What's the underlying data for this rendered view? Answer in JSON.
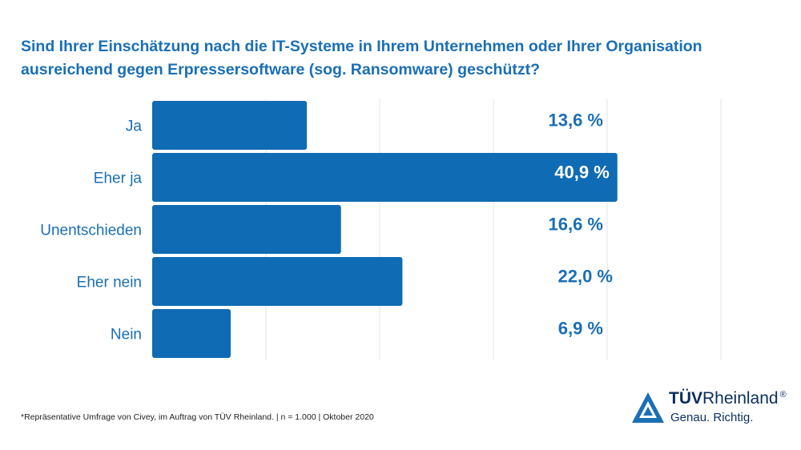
{
  "title_lines": [
    "Sind Ihrer Einschätzung nach die IT-Systeme in Ihrem Unternehmen oder Ihrer Organisation",
    "ausreichend gegen Erpressersoftware (sog. Ransomware) geschützt?"
  ],
  "chart_data": {
    "type": "bar",
    "orientation": "horizontal",
    "title": "Sind Ihrer Einschätzung nach die IT-Systeme in Ihrem Unternehmen oder Ihrer Organisation ausreichend gegen Erpressersoftware (sog. Ransomware) geschützt?",
    "categories": [
      "Ja",
      "Eher ja",
      "Unentschieden",
      "Eher nein",
      "Nein"
    ],
    "values": [
      13.6,
      40.9,
      16.6,
      22.0,
      6.9
    ],
    "value_labels": [
      "13,6 %",
      "40,9 %",
      "16,6 %",
      "22,0 %",
      "6,9 %"
    ],
    "xlim": [
      0,
      50
    ],
    "grid": true,
    "legend": "none",
    "bar_color": "#0f6bb3",
    "label_color": "#1a6fb5"
  },
  "footnote": "*Repräsentative Umfrage von Civey, im Auftrag von TÜV Rheinland. | n = 1.000 | Oktober 2020",
  "logo": {
    "brand_bold": "TÜV",
    "brand_regular": "Rheinland",
    "registered": "®",
    "claim": "Genau. Richtig.",
    "icon": "triangle-logo-icon",
    "color": "#0b2e5e",
    "accent": "#1a6fb5"
  }
}
